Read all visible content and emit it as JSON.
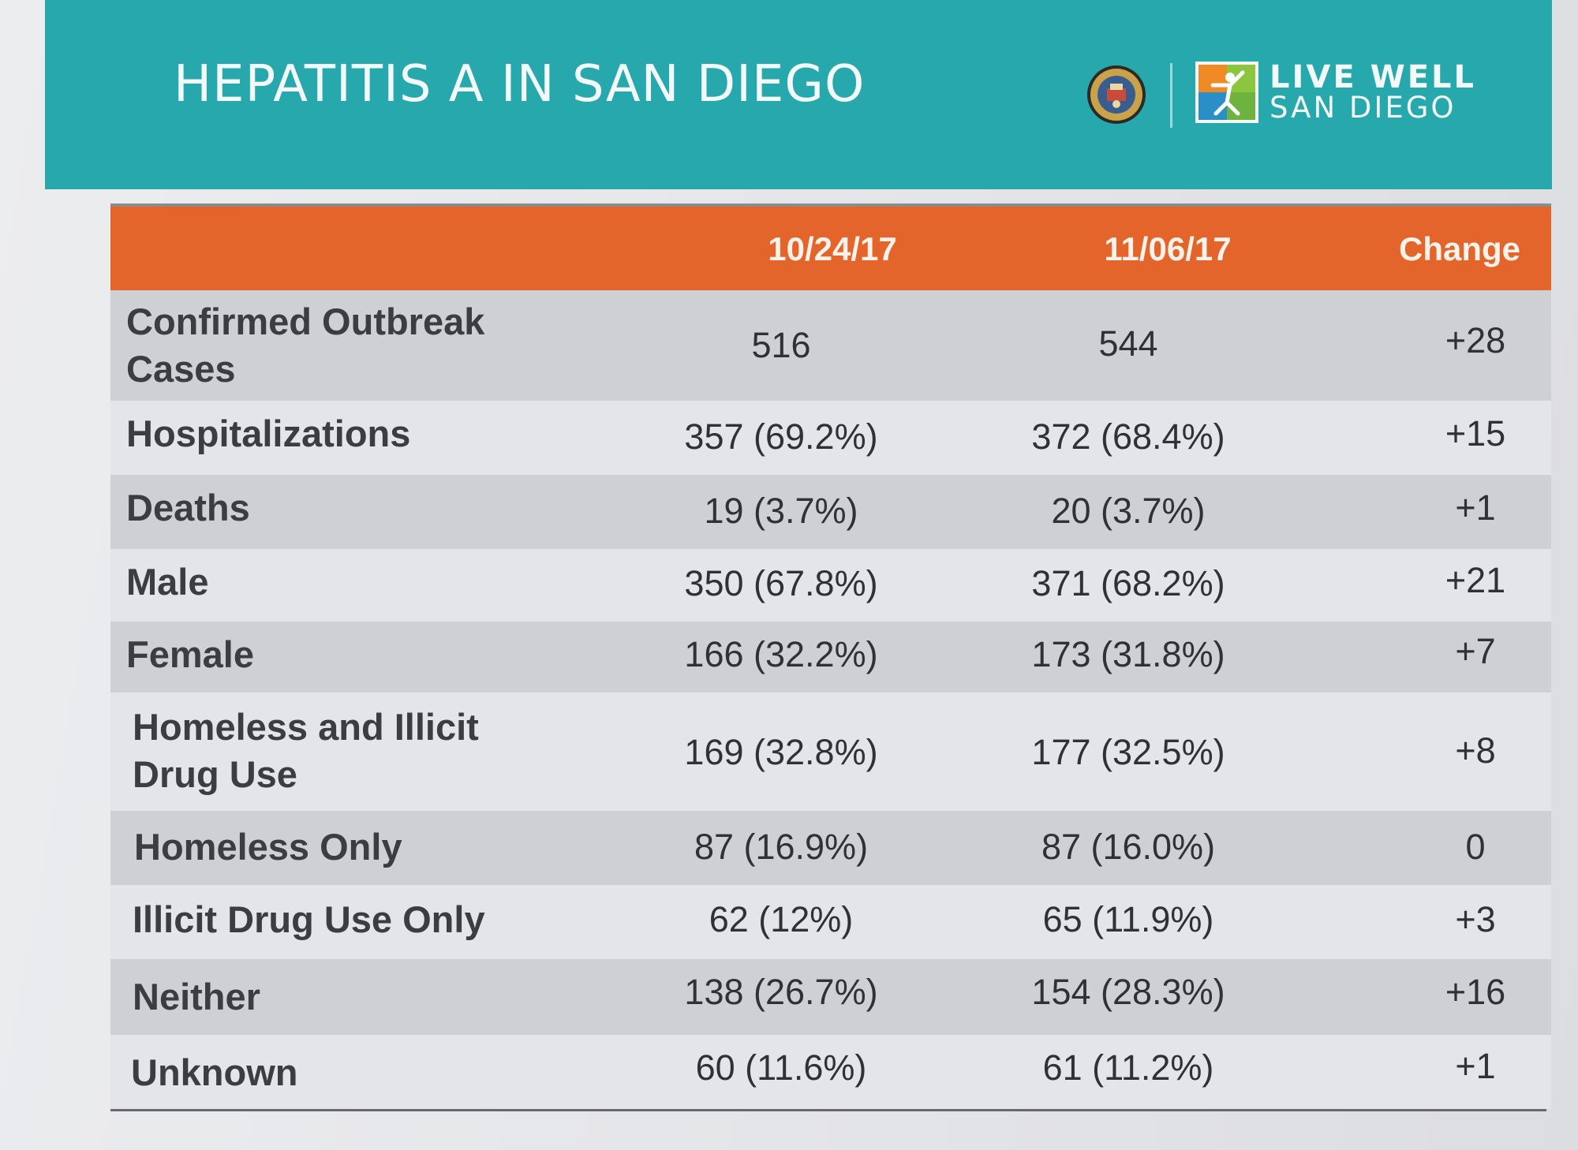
{
  "header": {
    "title": "HEPATITIS A IN SAN DIEGO",
    "logo_line1": "LIVE WELL",
    "logo_line2": "SAN DIEGO"
  },
  "table": {
    "columns": [
      "",
      "10/24/17",
      "11/06/17",
      "Change"
    ],
    "rows": [
      {
        "label": "Confirmed Outbreak Cases",
        "label_line1": "Confirmed Outbreak",
        "label_line2": "Cases",
        "v1": "516",
        "v2": "544",
        "change": "+28"
      },
      {
        "label": "Hospitalizations",
        "v1": "357 (69.2%)",
        "v2": "372 (68.4%)",
        "change": "+15"
      },
      {
        "label": "Deaths",
        "v1": "19 (3.7%)",
        "v2": "20 (3.7%)",
        "change": "+1"
      },
      {
        "label": "Male",
        "v1": "350 (67.8%)",
        "v2": "371 (68.2%)",
        "change": "+21"
      },
      {
        "label": "Female",
        "v1": "166 (32.2%)",
        "v2": "173 (31.8%)",
        "change": "+7"
      },
      {
        "label": "Homeless and Illicit Drug Use",
        "label_line1": "Homeless and Illicit",
        "label_line2": "Drug Use",
        "v1": "169 (32.8%)",
        "v2": "177 (32.5%)",
        "change": "+8"
      },
      {
        "label": "Homeless Only",
        "v1": "87 (16.9%)",
        "v2": "87 (16.0%)",
        "change": "0"
      },
      {
        "label": "Illicit Drug Use Only",
        "v1": "62 (12%)",
        "v2": "65 (11.9%)",
        "change": "+3"
      },
      {
        "label": "Neither",
        "v1": "138 (26.7%)",
        "v2": "154 (28.3%)",
        "change": "+16"
      },
      {
        "label": "Unknown",
        "v1": "60 (11.6%)",
        "v2": "61 (11.2%)",
        "change": "+1"
      }
    ]
  },
  "colors": {
    "header_teal": "#26a8ad",
    "table_header_orange": "#e3652c",
    "row_shade": "#cfd0d4"
  }
}
